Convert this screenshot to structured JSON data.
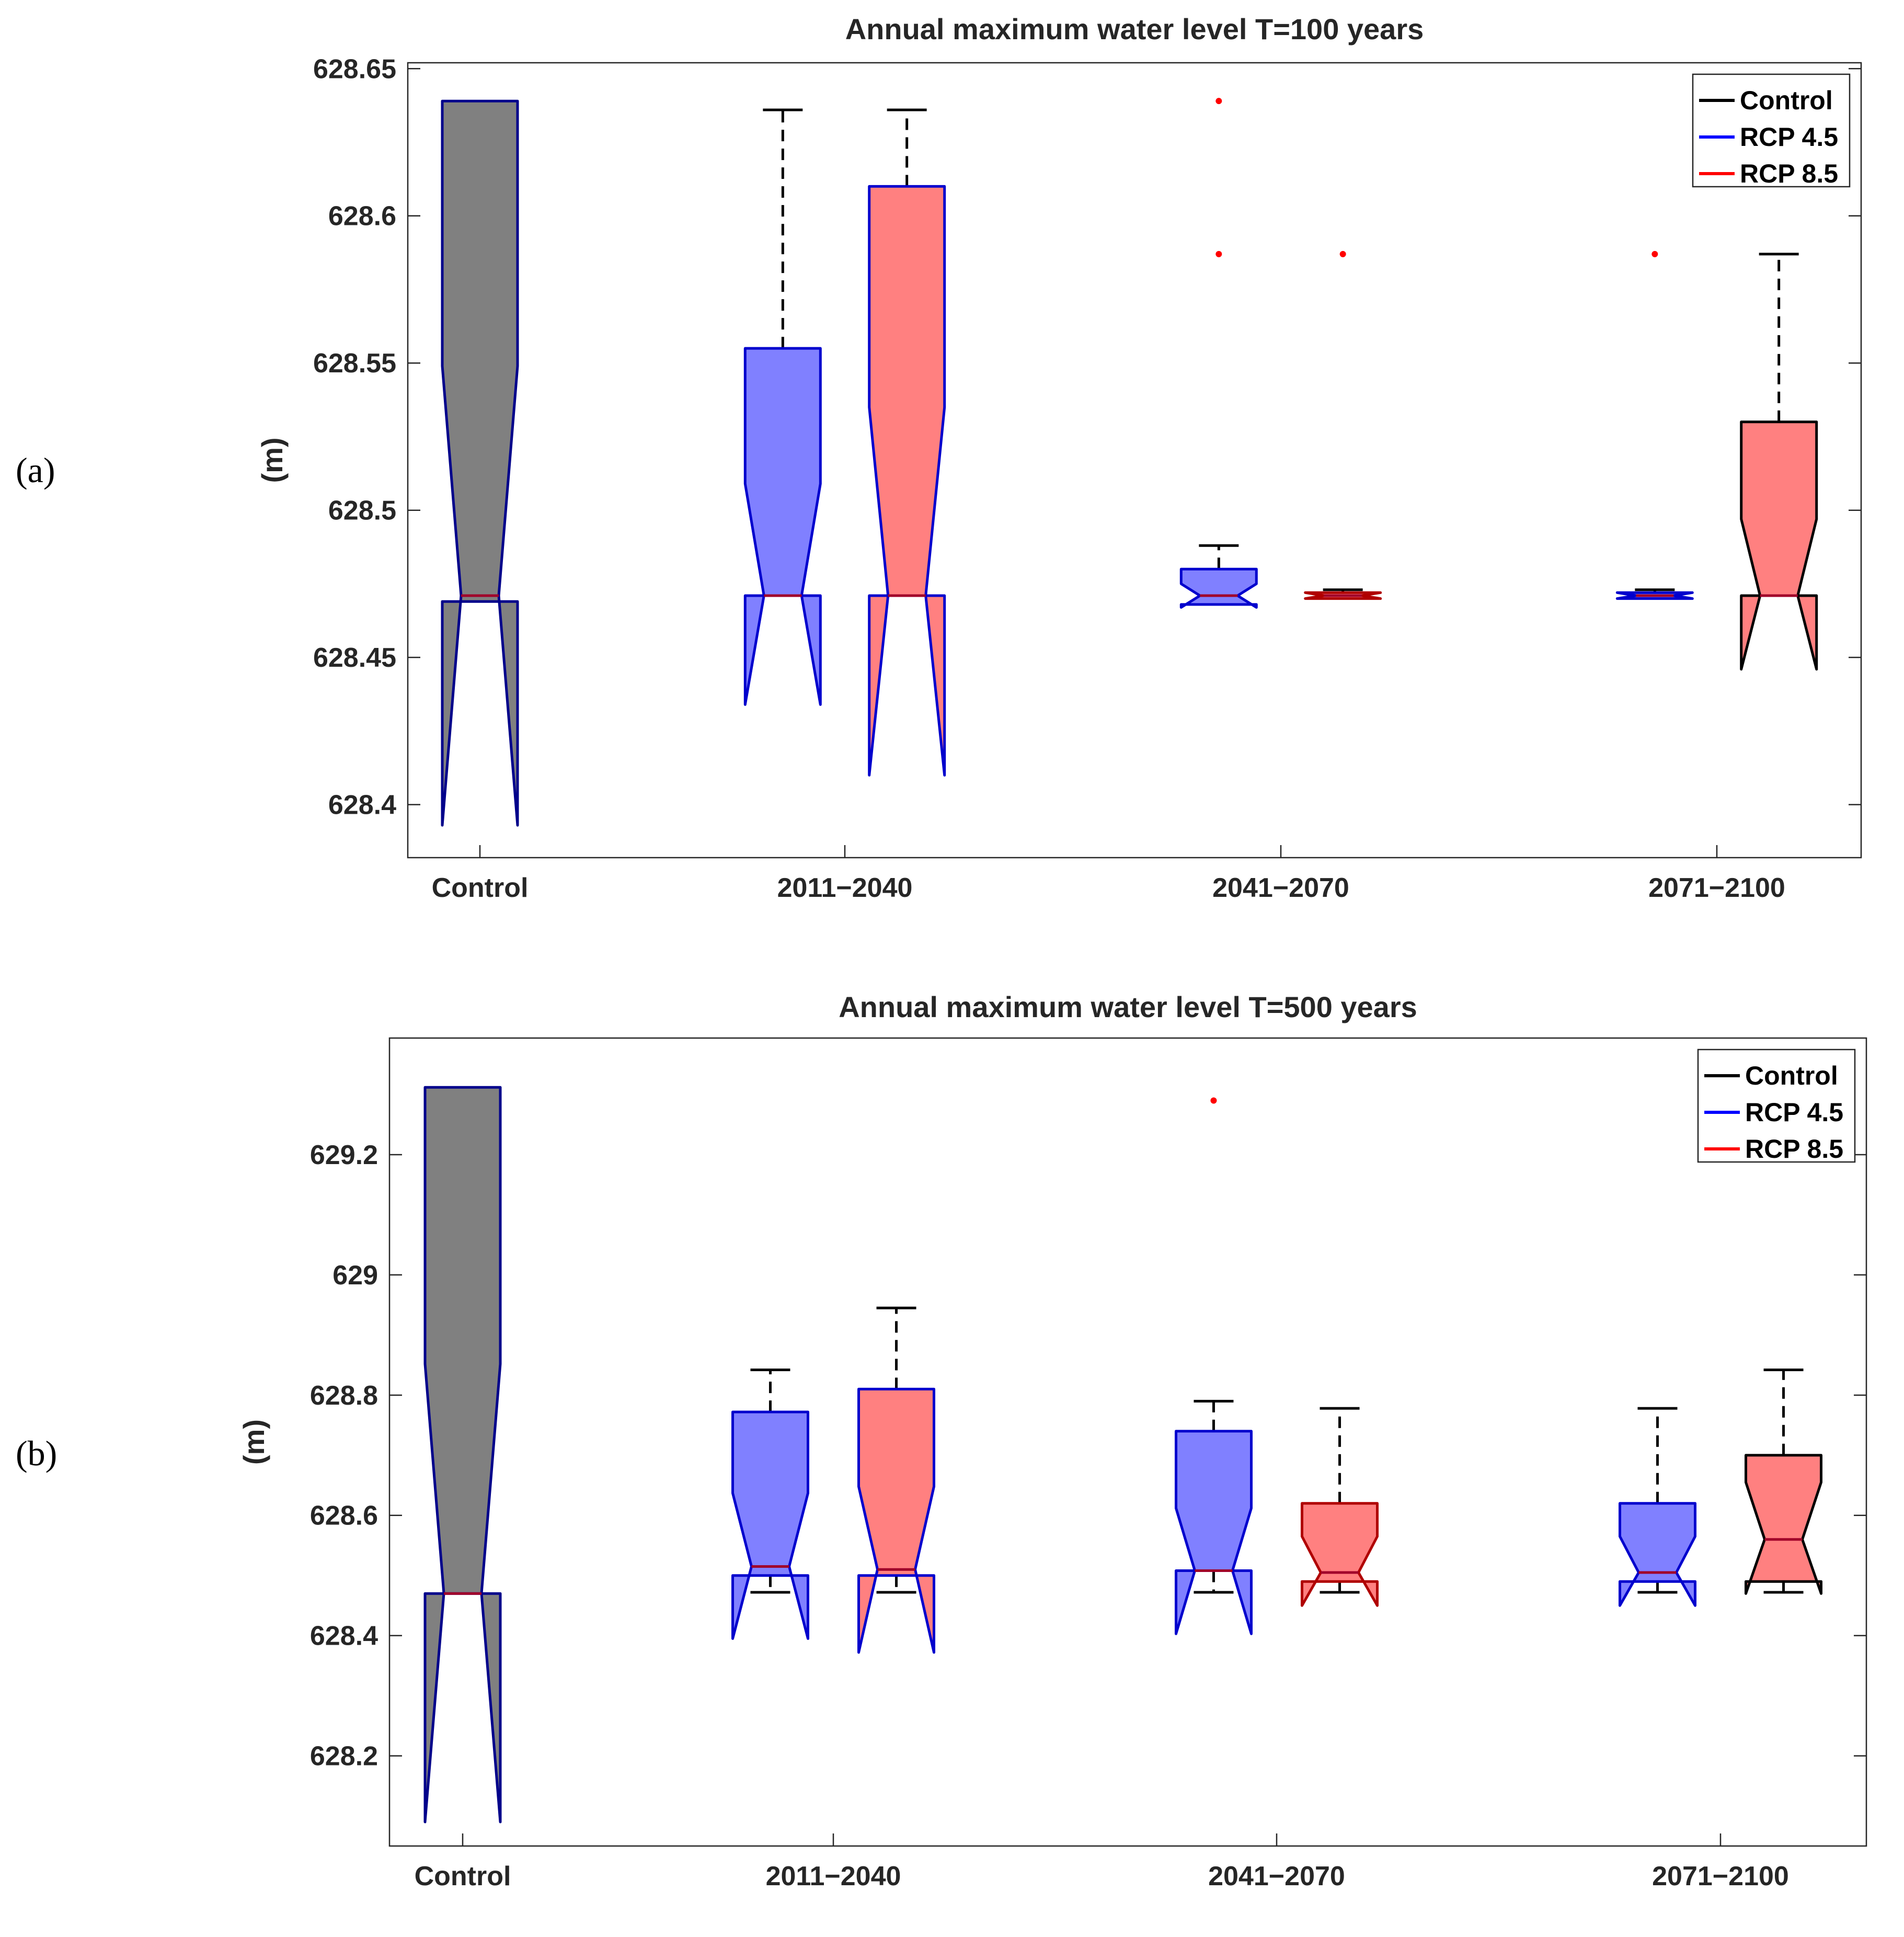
{
  "panel_labels": [
    "(a)",
    "(b)"
  ],
  "chart_data": [
    {
      "type": "notched-box",
      "title": "Annual maximum water level T=100 years",
      "ylabel": "(m)",
      "xlabel": "",
      "ylim": [
        628.382,
        628.652
      ],
      "yticks": [
        628.4,
        628.45,
        628.5,
        628.55,
        628.6,
        628.65
      ],
      "ytick_labels": [
        "628.4",
        "628.45",
        "628.5",
        "628.55",
        "628.6",
        "628.65"
      ],
      "categories": [
        "Control",
        "2011−2040",
        "2041−2070",
        "2071−2100"
      ],
      "legend": {
        "position": "top-right",
        "entries": [
          {
            "label": "Control",
            "color": "#000000"
          },
          {
            "label": "RCP 4.5",
            "color": "#0000ff"
          },
          {
            "label": "RCP 8.5",
            "color": "#ff0000"
          }
        ]
      },
      "boxes": [
        {
          "series": "Control",
          "category": 0,
          "offset": 0,
          "fill": "#808080",
          "edge": "#00008b",
          "q1": 628.469,
          "median": 628.471,
          "q3": 628.639,
          "notch_low": 628.393,
          "notch_high": 628.549,
          "whisker_low": null,
          "whisker_high": null,
          "outliers": []
        },
        {
          "series": "RCP 4.5",
          "category": 1,
          "offset": -0.17,
          "fill": "#8080ff",
          "edge": "#0000cd",
          "q1": 628.471,
          "median": 628.471,
          "q3": 628.555,
          "notch_low": 628.434,
          "notch_high": 628.509,
          "whisker_low": null,
          "whisker_high": 628.636,
          "outliers": []
        },
        {
          "series": "RCP 8.5",
          "category": 1,
          "offset": 0.17,
          "fill": "#ff8080",
          "edge": "#0000cd",
          "q1": 628.471,
          "median": 628.471,
          "q3": 628.61,
          "notch_low": 628.41,
          "notch_high": 628.535,
          "whisker_low": null,
          "whisker_high": 628.636,
          "outliers": []
        },
        {
          "series": "RCP 4.5",
          "category": 2,
          "offset": -0.17,
          "fill": "#8080ff",
          "edge": "#0000cd",
          "q1": 628.468,
          "median": 628.471,
          "q3": 628.48,
          "notch_low": 628.467,
          "notch_high": 628.475,
          "whisker_low": null,
          "whisker_high": 628.488,
          "outliers": [
            628.639,
            628.587
          ]
        },
        {
          "series": "RCP 8.5",
          "category": 2,
          "offset": 0.17,
          "fill": "#ff8080",
          "edge": "#b00000",
          "q1": 628.47,
          "median": 628.471,
          "q3": 628.472,
          "notch_low": 628.47,
          "notch_high": 628.472,
          "whisker_low": null,
          "whisker_high": 628.473,
          "outliers": [
            628.587
          ]
        },
        {
          "series": "RCP 4.5",
          "category": 3,
          "offset": -0.17,
          "fill": "#8080ff",
          "edge": "#0000cd",
          "q1": 628.47,
          "median": 628.471,
          "q3": 628.472,
          "notch_low": 628.47,
          "notch_high": 628.472,
          "whisker_low": null,
          "whisker_high": 628.473,
          "outliers": [
            628.587
          ]
        },
        {
          "series": "RCP 8.5",
          "category": 3,
          "offset": 0.17,
          "fill": "#ff8080",
          "edge": "#000000",
          "q1": 628.471,
          "median": 628.471,
          "q3": 628.53,
          "notch_low": 628.446,
          "notch_high": 628.497,
          "whisker_low": null,
          "whisker_high": 628.587,
          "outliers": []
        }
      ]
    },
    {
      "type": "notched-box",
      "title": "Annual maximum water level T=500 years",
      "ylabel": "(m)",
      "xlabel": "",
      "ylim": [
        628.05,
        629.394
      ],
      "yticks": [
        628.2,
        628.4,
        628.6,
        628.8,
        629,
        629.2
      ],
      "ytick_labels": [
        "628.2",
        "628.4",
        "628.6",
        "628.8",
        "629",
        "629.2"
      ],
      "categories": [
        "Control",
        "2011−2040",
        "2041−2070",
        "2071−2100"
      ],
      "legend": {
        "position": "top-right",
        "entries": [
          {
            "label": "Control",
            "color": "#000000"
          },
          {
            "label": "RCP 4.5",
            "color": "#0000ff"
          },
          {
            "label": "RCP 8.5",
            "color": "#ff0000"
          }
        ]
      },
      "boxes": [
        {
          "series": "Control",
          "category": 0,
          "offset": 0,
          "fill": "#808080",
          "edge": "#00008b",
          "q1": 628.47,
          "median": 628.47,
          "q3": 629.312,
          "notch_low": 628.09,
          "notch_high": 628.852,
          "whisker_low": null,
          "whisker_high": null,
          "outliers": []
        },
        {
          "series": "RCP 4.5",
          "category": 1,
          "offset": -0.17,
          "fill": "#8080ff",
          "edge": "#0000cd",
          "q1": 628.5,
          "median": 628.515,
          "q3": 628.772,
          "notch_low": 628.395,
          "notch_high": 628.637,
          "whisker_low": 628.472,
          "whisker_high": 628.842,
          "outliers": []
        },
        {
          "series": "RCP 8.5",
          "category": 1,
          "offset": 0.17,
          "fill": "#ff8080",
          "edge": "#0000cd",
          "q1": 628.5,
          "median": 628.51,
          "q3": 628.81,
          "notch_low": 628.372,
          "notch_high": 628.648,
          "whisker_low": 628.472,
          "whisker_high": 628.945,
          "outliers": []
        },
        {
          "series": "RCP 4.5",
          "category": 2,
          "offset": -0.17,
          "fill": "#8080ff",
          "edge": "#0000cd",
          "q1": 628.508,
          "median": 628.508,
          "q3": 628.74,
          "notch_low": 628.403,
          "notch_high": 628.612,
          "whisker_low": 628.472,
          "whisker_high": 628.79,
          "outliers": [
            629.29
          ]
        },
        {
          "series": "RCP 8.5",
          "category": 2,
          "offset": 0.17,
          "fill": "#ff8080",
          "edge": "#b00000",
          "q1": 628.49,
          "median": 628.505,
          "q3": 628.62,
          "notch_low": 628.45,
          "notch_high": 628.565,
          "whisker_low": 628.472,
          "whisker_high": 628.778,
          "outliers": []
        },
        {
          "series": "RCP 4.5",
          "category": 3,
          "offset": -0.17,
          "fill": "#8080ff",
          "edge": "#0000cd",
          "q1": 628.49,
          "median": 628.505,
          "q3": 628.62,
          "notch_low": 628.45,
          "notch_high": 628.565,
          "whisker_low": 628.472,
          "whisker_high": 628.778,
          "outliers": []
        },
        {
          "series": "RCP 8.5",
          "category": 3,
          "offset": 0.17,
          "fill": "#ff8080",
          "edge": "#000000",
          "q1": 628.49,
          "median": 628.56,
          "q3": 628.7,
          "notch_low": 628.47,
          "notch_high": 628.655,
          "whisker_low": 628.472,
          "whisker_high": 628.842,
          "outliers": []
        }
      ]
    }
  ]
}
